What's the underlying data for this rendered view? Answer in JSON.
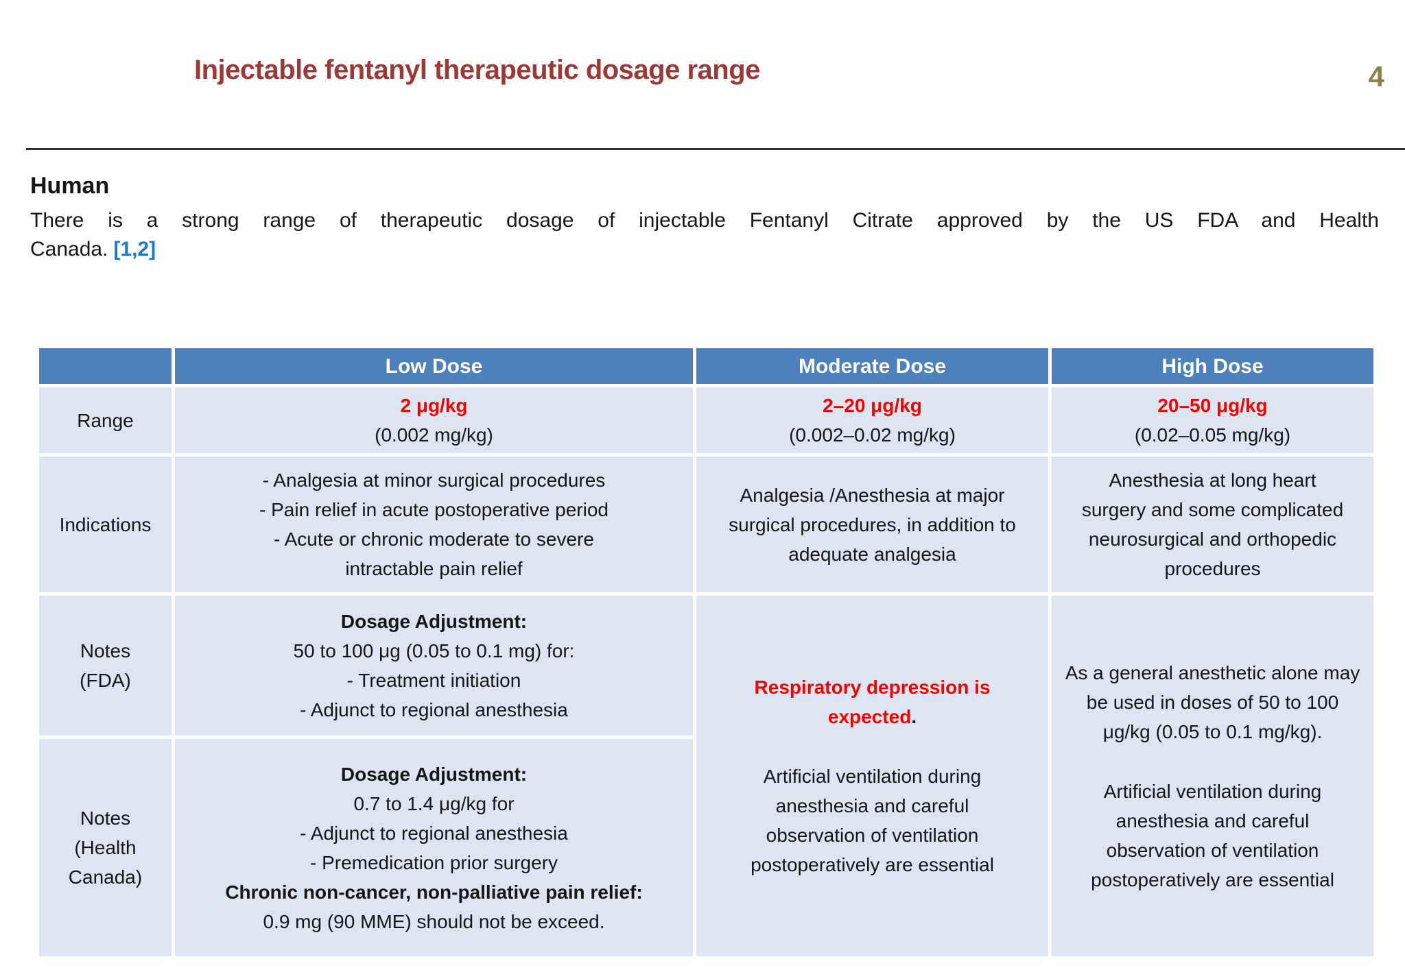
{
  "slide": {
    "title": "Injectable fentanyl therapeutic dosage range",
    "page_number": "4"
  },
  "intro": {
    "heading": "Human",
    "body_line1": "There is a strong range of therapeutic dosage of injectable Fentanyl Citrate approved by the US FDA and Health",
    "body_line2": "Canada.",
    "citation": "[1,2]"
  },
  "colors": {
    "title_maroon": "#9B3938",
    "page_number_olive": "#8D8049",
    "table_header_blue": "#4E80BC",
    "table_cell_light_blue": "#DCE5F1",
    "accent_red": "#F50000",
    "citation_blue": "#1E79C4"
  },
  "table": {
    "headers": {
      "corner": "",
      "low": "Low Dose",
      "moderate": "Moderate Dose",
      "high": "High Dose"
    },
    "row_labels": {
      "range": "Range",
      "indications": "Indications",
      "notes_fda": "Notes\n(FDA)",
      "notes_hc": "Notes\n(Health\nCanada)"
    },
    "range": {
      "low": {
        "dose": "2 μg/kg",
        "mg": "(0.002 mg/kg)"
      },
      "moderate": {
        "dose": "2–20 μg/kg",
        "mg": "(0.002–0.02 mg/kg)"
      },
      "high": {
        "dose": "20–50 μg/kg",
        "mg": "(0.02–0.05 mg/kg)"
      }
    },
    "indications": {
      "low": [
        "- Analgesia at minor surgical procedures",
        "- Pain relief in acute postoperative period",
        "- Acute or chronic moderate to severe intractable pain relief"
      ],
      "moderate": "Analgesia /Anesthesia at major surgical procedures, in addition to adequate analgesia",
      "high": "Anesthesia at long heart surgery and some complicated neurosurgical and orthopedic procedures"
    },
    "notes_fda": {
      "low_heading": "Dosage Adjustment:",
      "low_lines": [
        "50 to 100 μg (0.05 to 0.1 mg) for:",
        "- Treatment initiation",
        "- Adjunct to regional anesthesia"
      ]
    },
    "notes_hc": {
      "low_heading": "Dosage Adjustment:",
      "low_lines": [
        "0.7 to 1.4 μg/kg for",
        "- Adjunct to regional anesthesia",
        "- Premedication prior surgery"
      ],
      "low_heading2": "Chronic non-cancer, non-palliative pain relief:",
      "low_line2": "0.9 mg (90 MME) should not be exceed."
    },
    "notes_merged": {
      "moderate": {
        "warning": "Respiratory depression is expected",
        "warning_period": ".",
        "body": "Artificial ventilation during anesthesia and careful observation of ventilation postoperatively are essential"
      },
      "high": {
        "lead": "As a general anesthetic alone may be used in doses of 50 to 100 μg/kg (0.05 to 0.1 mg/kg).",
        "body": "Artificial ventilation during anesthesia and careful observation of ventilation postoperatively are essential"
      }
    }
  }
}
